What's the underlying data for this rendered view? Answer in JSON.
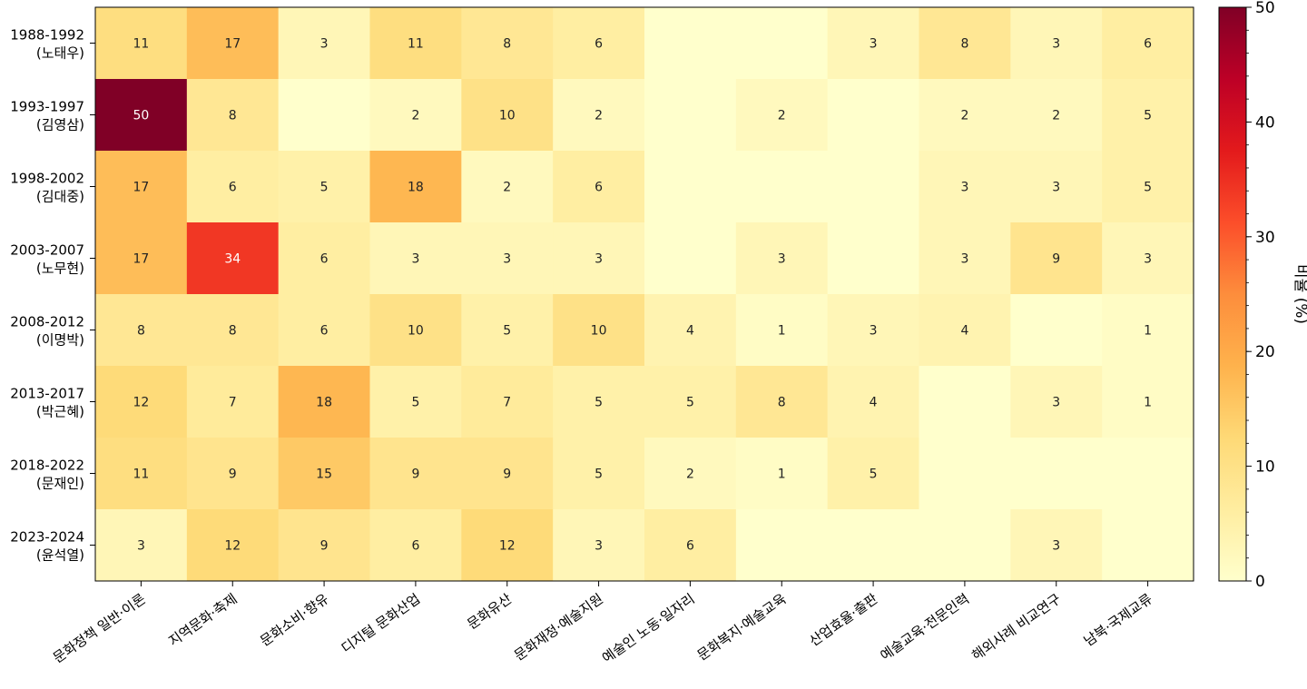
{
  "chart_data": {
    "type": "heatmap",
    "title": "",
    "xlabel": "",
    "ylabel": "",
    "rows": [
      [
        "1988-1992",
        "(노태우)"
      ],
      [
        "1993-1997",
        "(김영삼)"
      ],
      [
        "1998-2002",
        "(김대중)"
      ],
      [
        "2003-2007",
        "(노무현)"
      ],
      [
        "2008-2012",
        "(이명박)"
      ],
      [
        "2013-2017",
        "(박근혜)"
      ],
      [
        "2018-2022",
        "(문재인)"
      ],
      [
        "2023-2024",
        "(윤석열)"
      ]
    ],
    "columns": [
      "문화정책 일반·이론",
      "지역문화·축제",
      "문화소비·향유",
      "디지털 문화산업",
      "문화유산",
      "문화재정·예술지원",
      "예술인 노동·일자리",
      "문화복지·예술교육",
      "산업효율·출판",
      "예술교육·전문인력",
      "해외사례 비교연구",
      "남북·국제교류"
    ],
    "values": [
      [
        11,
        17,
        3,
        11,
        8,
        6,
        0,
        0,
        3,
        8,
        3,
        6
      ],
      [
        50,
        8,
        0,
        2,
        10,
        2,
        0,
        2,
        0,
        2,
        2,
        5
      ],
      [
        17,
        6,
        5,
        18,
        2,
        6,
        0,
        0,
        0,
        3,
        3,
        5
      ],
      [
        17,
        34,
        6,
        3,
        3,
        3,
        0,
        3,
        0,
        3,
        9,
        3
      ],
      [
        8,
        8,
        6,
        10,
        5,
        10,
        4,
        1,
        3,
        4,
        0,
        1
      ],
      [
        12,
        7,
        18,
        5,
        7,
        5,
        5,
        8,
        4,
        0,
        3,
        1
      ],
      [
        11,
        9,
        15,
        9,
        9,
        5,
        2,
        1,
        5,
        0,
        0,
        0
      ],
      [
        3,
        12,
        9,
        6,
        12,
        3,
        6,
        0,
        0,
        0,
        3,
        0
      ]
    ],
    "colorbar": {
      "label": "비율 (%)",
      "range": [
        0,
        50
      ],
      "ticks": [
        0,
        10,
        20,
        30,
        40,
        50
      ],
      "colormap": "YlOrRd"
    }
  }
}
